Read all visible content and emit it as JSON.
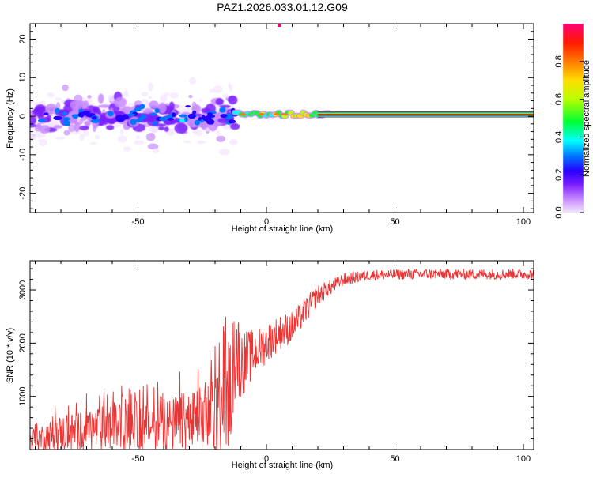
{
  "title": "PAZ1.2026.033.01.12.G09",
  "chart_data": [
    {
      "type": "heatmap",
      "xlabel": "Height of straight line (km)",
      "ylabel": "Frequency (Hz)",
      "xlim": [
        -92,
        104
      ],
      "ylim": [
        -25,
        24
      ],
      "xticks": [
        -50,
        0,
        50,
        100
      ],
      "xtick_labels": [
        "-50",
        "0",
        "50",
        "100"
      ],
      "yticks": [
        -20,
        -10,
        0,
        10,
        20
      ],
      "ytick_labels": [
        "-20",
        "-10",
        "0",
        "10",
        "20"
      ],
      "colorbar": {
        "label": "Normalized spectral amplitude",
        "range": [
          0,
          1
        ],
        "ticks": [
          0,
          0.2,
          0.4,
          0.6,
          0.8
        ],
        "tick_labels": [
          "0.0",
          "0.2",
          "0.4",
          "0.6",
          "0.8"
        ],
        "colors": [
          "#f4e6ff",
          "#c88bff",
          "#7a1cff",
          "#2600ff",
          "#0077ff",
          "#00ffff",
          "#00ff33",
          "#b8ff00",
          "#ffdd00",
          "#ff7a00",
          "#ff1a00",
          "#ff0077"
        ]
      },
      "features": {
        "noisy_region_x": [
          -92,
          -12
        ],
        "noisy_region_y": [
          -8,
          8
        ],
        "coherent_band_start_x": -12,
        "coherent_band_freq": 0.5,
        "saturated_line_start_x": 20
      }
    },
    {
      "type": "line",
      "xlabel": "Height of straight line (km)",
      "ylabel": "SNR (10 * v/v)",
      "xlim": [
        -92,
        104
      ],
      "ylim": [
        0,
        3550
      ],
      "xticks": [
        -50,
        0,
        50,
        100
      ],
      "xtick_labels": [
        "-50",
        "0",
        "50",
        "100"
      ],
      "yticks": [
        1000,
        2000,
        3000
      ],
      "ytick_labels": [
        "1000",
        "2000",
        "3000"
      ],
      "series": [
        {
          "name": "SNR",
          "color": "#ee3333",
          "envelope_x": [
            -92,
            -80,
            -60,
            -40,
            -25,
            -18,
            -14,
            -12,
            -10,
            -5,
            0,
            5,
            10,
            15,
            20,
            25,
            30,
            40,
            60,
            80,
            104
          ],
          "envelope_mean": [
            180,
            300,
            420,
            450,
            550,
            700,
            1100,
            2000,
            1600,
            1800,
            2000,
            2200,
            2300,
            2600,
            2900,
            3050,
            3200,
            3280,
            3300,
            3300,
            3300
          ],
          "envelope_spread": [
            200,
            350,
            450,
            500,
            650,
            800,
            1000,
            1000,
            650,
            450,
            380,
            330,
            300,
            250,
            200,
            150,
            120,
            100,
            100,
            100,
            100
          ]
        }
      ]
    }
  ]
}
